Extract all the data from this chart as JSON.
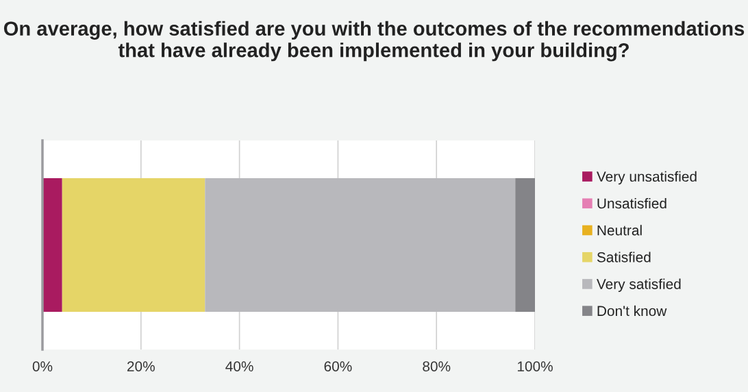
{
  "chart_data": {
    "type": "bar",
    "orientation": "horizontal",
    "stacked": true,
    "title": "On average, how satisfied are you with the outcomes of the recommendations that have already been implemented in your building?",
    "categories": [
      null
    ],
    "series": [
      {
        "name": "Very unsatisfied",
        "color": "#a91b60",
        "values": [
          4
        ]
      },
      {
        "name": "Unsatisfied",
        "color": "#e57fb3",
        "values": [
          0
        ]
      },
      {
        "name": "Neutral",
        "color": "#e8b120",
        "values": [
          0
        ]
      },
      {
        "name": "Satisfied",
        "color": "#e5d567",
        "values": [
          29
        ]
      },
      {
        "name": "Very satisfied",
        "color": "#b8b8bc",
        "values": [
          63
        ]
      },
      {
        "name": "Don't know",
        "color": "#848488",
        "values": [
          4
        ]
      }
    ],
    "xlim": [
      0,
      100
    ],
    "xticks": [
      {
        "value": 0,
        "label": "0%"
      },
      {
        "value": 20,
        "label": "20%"
      },
      {
        "value": 40,
        "label": "40%"
      },
      {
        "value": 60,
        "label": "60%"
      },
      {
        "value": 80,
        "label": "80%"
      },
      {
        "value": 100,
        "label": "100%"
      }
    ],
    "grid": "x",
    "legend": "right"
  }
}
